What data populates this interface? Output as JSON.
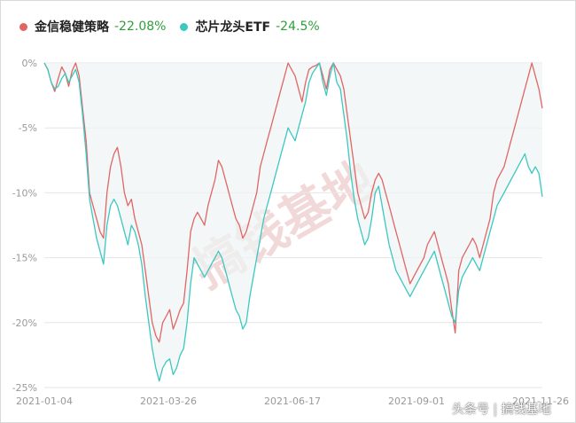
{
  "legend": [
    {
      "name": "金信稳健策略",
      "value": "-22.08%",
      "color": "#e06666"
    },
    {
      "name": "芯片龙头ETF",
      "value": "-24.5%",
      "color": "#3cc8c0"
    }
  ],
  "watermark": {
    "center": "搞钱基地",
    "corner": "头条号 | 搞钱基地"
  },
  "chart_data": {
    "type": "line",
    "y_ticks": [
      "0%",
      "-5%",
      "-10%",
      "-15%",
      "-20%",
      "-25%"
    ],
    "x_ticks": [
      "2021-01-04",
      "2021-03-26",
      "2021-06-17",
      "2021-09-01",
      "2021-11-26"
    ],
    "ylim": [
      -25,
      0
    ],
    "series": [
      {
        "name": "金信稳健策略",
        "color": "#e06666",
        "values": [
          0,
          -0.5,
          -1.5,
          -2.2,
          -1.2,
          -0.3,
          -0.8,
          -1.8,
          -0.6,
          0,
          -1,
          -3.5,
          -6,
          -10,
          -11,
          -12,
          -13,
          -13.5,
          -10,
          -8,
          -7,
          -6.5,
          -8,
          -10,
          -11,
          -10.5,
          -12,
          -13,
          -14,
          -16,
          -18,
          -20,
          -21,
          -21.5,
          -20,
          -19.5,
          -19,
          -20.5,
          -19.8,
          -19,
          -18.5,
          -16,
          -13,
          -12,
          -11.5,
          -12,
          -12.5,
          -11,
          -10,
          -9,
          -7.5,
          -8,
          -9,
          -10,
          -11,
          -12,
          -12.5,
          -13.5,
          -13,
          -12,
          -11,
          -10,
          -8,
          -7,
          -6,
          -5,
          -4,
          -3,
          -2,
          -1,
          0,
          -0.5,
          -1,
          -2,
          -3,
          -1.5,
          -0.5,
          -0.3,
          -0.2,
          0,
          -1,
          -2,
          -0.5,
          0,
          -0.5,
          -1,
          -2,
          -4,
          -6,
          -8,
          -10,
          -11,
          -12,
          -11.5,
          -10,
          -9,
          -8.5,
          -9,
          -10,
          -11,
          -12,
          -13,
          -14,
          -15,
          -16,
          -17,
          -16.5,
          -16,
          -15.5,
          -15,
          -14,
          -13.5,
          -13,
          -14,
          -15,
          -16,
          -17,
          -19,
          -20.8,
          -16,
          -15,
          -14.5,
          -14,
          -13.5,
          -14,
          -15,
          -14,
          -13,
          -12,
          -10,
          -9,
          -8.5,
          -8,
          -7,
          -6,
          -5,
          -4,
          -3,
          -2,
          -1,
          0,
          -1,
          -2,
          -3.5
        ]
      },
      {
        "name": "芯片龙头ETF",
        "color": "#3cc8c0",
        "values": [
          0,
          -0.5,
          -1.5,
          -2,
          -1.8,
          -1.2,
          -0.8,
          -1.5,
          -1,
          -0.5,
          -1.5,
          -4,
          -7,
          -10.5,
          -12,
          -13.5,
          -14.5,
          -15.5,
          -12.5,
          -11,
          -10.5,
          -11,
          -12,
          -13,
          -14,
          -12.5,
          -13,
          -14,
          -15.5,
          -18,
          -20,
          -22,
          -23.5,
          -24.5,
          -23.5,
          -23,
          -22.8,
          -24,
          -23.5,
          -22.5,
          -22,
          -20,
          -17,
          -15,
          -15.5,
          -16,
          -16.5,
          -16,
          -15.5,
          -15,
          -14.5,
          -15,
          -16,
          -17,
          -18,
          -19,
          -19.5,
          -20.5,
          -20,
          -18,
          -16.5,
          -15,
          -13.5,
          -12,
          -11,
          -10,
          -9,
          -8,
          -7,
          -6,
          -5,
          -5.5,
          -6,
          -5,
          -4,
          -3,
          -1.5,
          -0.8,
          -0.4,
          0,
          -1.5,
          -2.5,
          -1,
          0,
          -1.5,
          -2,
          -4,
          -6,
          -8.5,
          -10.5,
          -12,
          -13,
          -14,
          -13.5,
          -12,
          -10,
          -9.5,
          -11,
          -12.5,
          -14,
          -15,
          -16,
          -16.5,
          -17,
          -17.5,
          -18,
          -17.5,
          -17,
          -16.5,
          -16,
          -15.5,
          -15,
          -14.5,
          -15.5,
          -16.5,
          -17.5,
          -18.5,
          -19.5,
          -20,
          -17.5,
          -16.5,
          -16,
          -15.5,
          -15,
          -15.5,
          -16,
          -15,
          -14,
          -13,
          -12,
          -11,
          -10.5,
          -10,
          -9.5,
          -9,
          -8.5,
          -8,
          -7.5,
          -7,
          -8,
          -8.5,
          -8,
          -8.5,
          -10.3
        ]
      }
    ],
    "grid": true,
    "legend_position": "top-left"
  }
}
